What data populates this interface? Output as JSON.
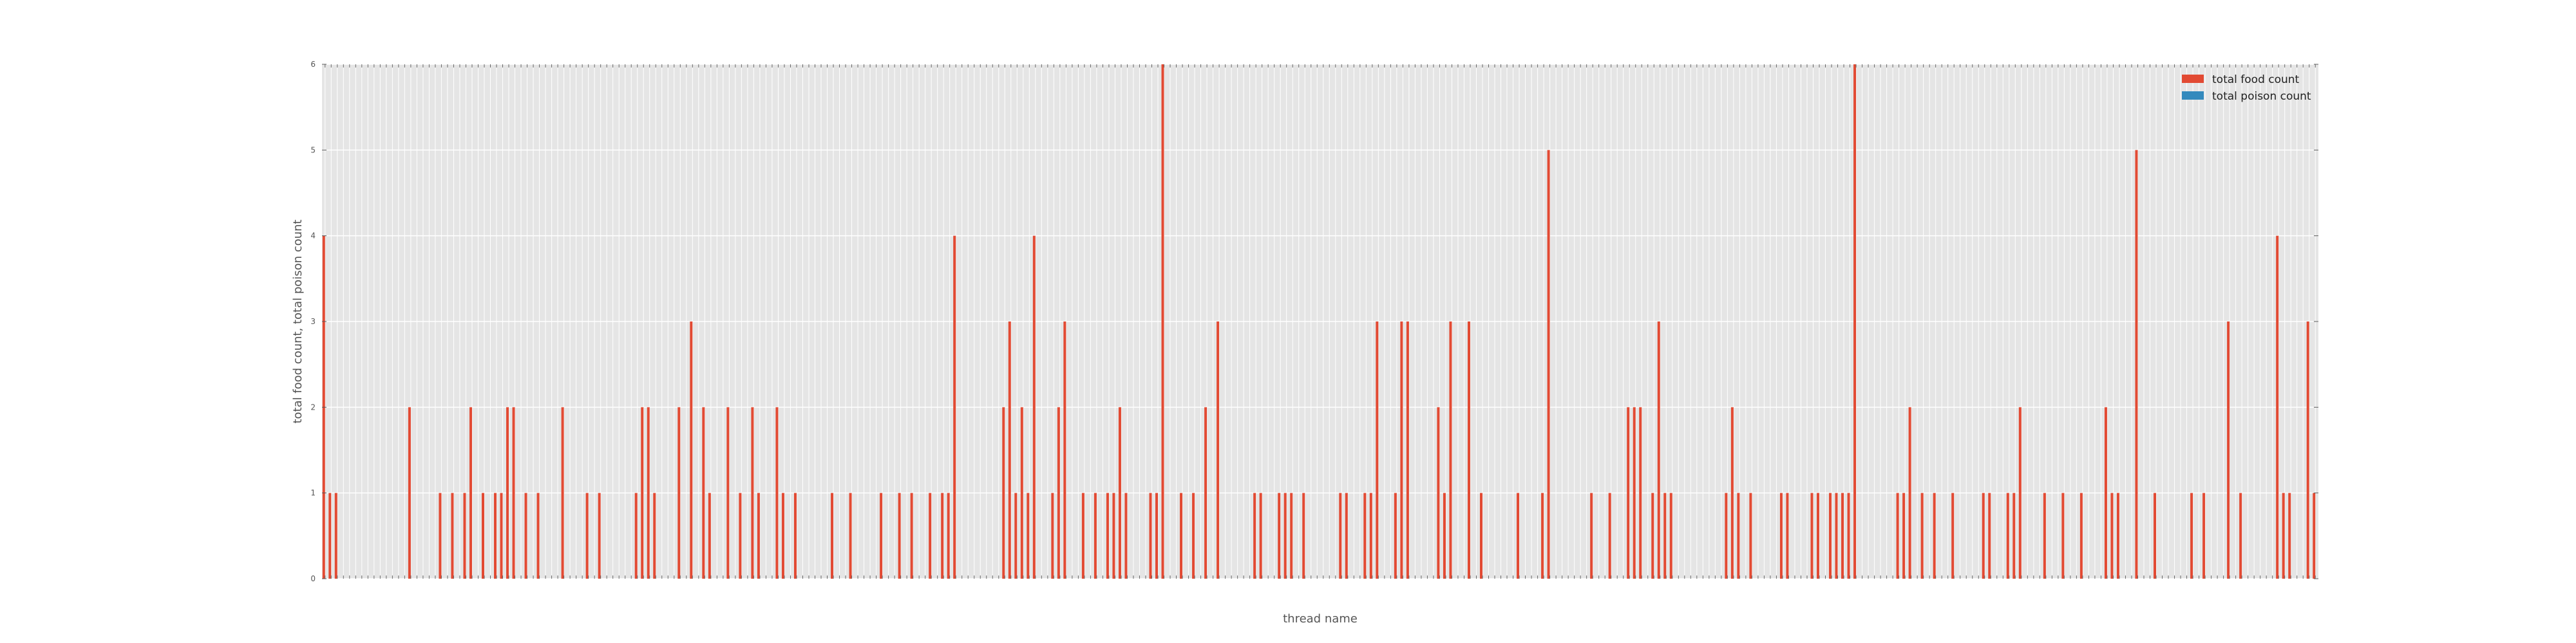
{
  "chart_data": {
    "type": "bar",
    "xlabel": "thread name",
    "ylabel": "total food count, total poison count",
    "ylim": [
      0,
      6
    ],
    "yticks": [
      0,
      1,
      2,
      3,
      4,
      5,
      6
    ],
    "grid": true,
    "legend_position": "top-right",
    "series": [
      {
        "name": "total food count",
        "color": "#E24A33",
        "values": [
          4,
          1,
          1,
          0,
          0,
          0,
          0,
          0,
          0,
          0,
          0,
          0,
          0,
          0,
          2,
          0,
          0,
          0,
          0,
          1,
          0,
          1,
          0,
          1,
          2,
          0,
          1,
          0,
          1,
          1,
          2,
          2,
          0,
          1,
          0,
          1,
          0,
          0,
          0,
          2,
          0,
          0,
          0,
          1,
          0,
          1,
          0,
          0,
          0,
          0,
          0,
          1,
          2,
          2,
          1,
          0,
          0,
          0,
          2,
          0,
          3,
          0,
          2,
          1,
          0,
          0,
          2,
          0,
          1,
          0,
          2,
          1,
          0,
          0,
          2,
          1,
          0,
          1,
          0,
          0,
          0,
          0,
          0,
          1,
          0,
          0,
          1,
          0,
          0,
          0,
          0,
          1,
          0,
          0,
          1,
          0,
          1,
          0,
          0,
          1,
          0,
          1,
          1,
          4,
          0,
          0,
          0,
          0,
          0,
          0,
          0,
          2,
          3,
          1,
          2,
          1,
          4,
          0,
          0,
          1,
          2,
          3,
          0,
          0,
          1,
          0,
          1,
          0,
          1,
          1,
          2,
          1,
          0,
          0,
          0,
          1,
          1,
          6,
          0,
          0,
          1,
          0,
          1,
          0,
          2,
          0,
          3,
          0,
          0,
          0,
          0,
          0,
          1,
          1,
          0,
          0,
          1,
          1,
          1,
          0,
          1,
          0,
          0,
          0,
          0,
          0,
          1,
          1,
          0,
          0,
          1,
          1,
          3,
          0,
          0,
          1,
          3,
          3,
          0,
          0,
          0,
          0,
          2,
          1,
          3,
          0,
          0,
          3,
          0,
          1,
          0,
          0,
          0,
          0,
          0,
          1,
          0,
          0,
          0,
          1,
          5,
          0,
          0,
          0,
          0,
          0,
          0,
          1,
          0,
          0,
          1,
          0,
          0,
          2,
          2,
          2,
          0,
          1,
          3,
          1,
          1,
          0,
          0,
          0,
          0,
          0,
          0,
          0,
          0,
          1,
          2,
          1,
          0,
          1,
          0,
          0,
          0,
          0,
          1,
          1,
          0,
          0,
          0,
          1,
          1,
          0,
          1,
          1,
          1,
          1,
          6,
          0,
          0,
          0,
          0,
          0,
          0,
          1,
          1,
          2,
          0,
          1,
          0,
          1,
          0,
          0,
          1,
          0,
          0,
          0,
          0,
          1,
          1,
          0,
          0,
          1,
          1,
          2,
          0,
          0,
          0,
          1,
          0,
          0,
          1,
          0,
          0,
          1,
          0,
          0,
          0,
          2,
          1,
          1,
          0,
          0,
          5,
          0,
          0,
          1,
          0,
          0,
          0,
          0,
          0,
          1,
          0,
          1,
          0,
          0,
          0,
          3,
          0,
          1,
          0,
          0,
          0,
          0,
          0,
          4,
          1,
          1,
          0,
          0,
          3,
          1
        ]
      },
      {
        "name": "total poison count",
        "color": "#348ABD",
        "values": [
          0,
          0,
          0,
          0,
          0,
          0,
          0,
          0,
          0,
          0,
          0,
          0,
          0,
          0,
          0,
          0,
          0,
          0,
          0,
          0,
          0,
          0,
          0,
          0,
          0,
          0,
          0,
          0,
          0,
          0,
          0,
          0,
          0,
          0,
          0,
          0,
          0,
          0,
          0,
          0,
          0,
          0,
          0,
          0,
          0,
          0,
          0,
          0,
          0,
          0,
          0,
          0,
          0,
          0,
          0,
          0,
          0,
          0,
          0,
          0,
          0,
          0,
          0,
          0,
          0,
          0,
          0,
          0,
          0,
          0,
          0,
          0,
          0,
          0,
          0,
          0,
          0,
          0,
          0,
          0,
          0,
          0,
          0,
          0,
          0,
          0,
          0,
          0,
          0,
          0,
          0,
          0,
          0,
          0,
          0,
          0,
          0,
          0,
          0,
          0,
          0,
          0,
          0,
          0,
          0,
          0,
          0,
          0,
          0,
          0,
          0,
          0,
          0,
          0,
          0,
          0,
          0,
          0,
          0,
          0,
          0,
          0,
          0,
          0,
          0,
          0,
          0,
          0,
          0,
          0,
          0,
          0,
          0,
          0,
          0,
          0,
          0,
          0,
          0,
          0,
          0,
          0,
          0,
          0,
          0,
          0,
          0,
          0,
          0,
          0,
          0,
          0,
          0,
          0,
          0,
          0,
          0,
          0,
          0,
          0,
          0,
          0,
          0,
          0,
          0,
          0,
          0,
          0,
          0,
          0,
          0,
          0,
          0,
          0,
          0,
          0,
          0,
          0,
          0,
          0,
          0,
          0,
          0,
          0,
          0,
          0,
          0,
          0,
          0,
          0,
          0,
          0,
          0,
          0,
          0,
          0,
          0,
          0,
          0,
          0,
          0,
          0,
          0,
          0,
          0,
          0,
          0,
          0,
          0,
          0,
          0,
          0,
          0,
          0,
          0,
          0,
          0,
          0,
          0,
          0,
          0,
          0,
          0,
          0,
          0,
          0,
          0,
          0,
          0,
          0,
          0,
          0,
          0,
          0,
          0,
          0,
          0,
          0,
          0,
          0,
          0,
          0,
          0,
          0,
          0,
          0,
          0,
          0,
          0,
          0,
          0,
          0,
          0,
          0,
          0,
          0,
          0,
          0,
          0,
          0,
          0,
          0,
          0,
          0,
          0,
          0,
          0,
          0,
          0,
          0,
          0,
          0,
          0,
          0,
          0,
          0,
          0,
          0,
          0,
          0,
          0,
          0,
          0,
          0,
          0,
          0,
          0,
          0,
          0,
          0,
          0,
          0,
          0,
          0,
          0,
          0,
          0,
          0,
          0,
          0,
          0,
          0,
          0,
          0,
          0,
          0,
          0,
          0,
          0,
          0,
          0,
          0,
          0,
          0,
          0,
          0
        ]
      }
    ]
  }
}
